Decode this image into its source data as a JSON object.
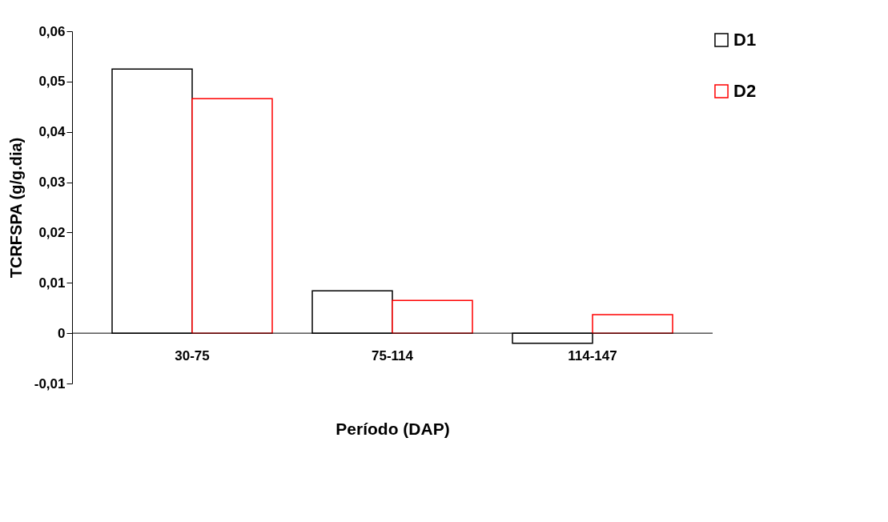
{
  "chart_data": {
    "type": "bar",
    "xlabel": "Período (DAP)",
    "ylabel": "TCRFSPA (g/g.dia)",
    "categories": [
      "30-75",
      "75-114",
      "114-147"
    ],
    "series": [
      {
        "name": "D1",
        "color": "#000000",
        "values": [
          0.0525,
          0.0084,
          -0.002
        ]
      },
      {
        "name": "D2",
        "color": "#ff0000",
        "values": [
          0.0466,
          0.0065,
          0.0037
        ]
      }
    ],
    "ylim": [
      -0.01,
      0.06
    ],
    "yticks": [
      {
        "value": -0.01,
        "label": "-0,01"
      },
      {
        "value": 0,
        "label": "0"
      },
      {
        "value": 0.01,
        "label": "0,01"
      },
      {
        "value": 0.02,
        "label": "0,02"
      },
      {
        "value": 0.03,
        "label": "0,03"
      },
      {
        "value": 0.04,
        "label": "0,04"
      },
      {
        "value": 0.05,
        "label": "0,05"
      },
      {
        "value": 0.06,
        "label": "0,06"
      }
    ],
    "grid": false,
    "legend": "right"
  }
}
